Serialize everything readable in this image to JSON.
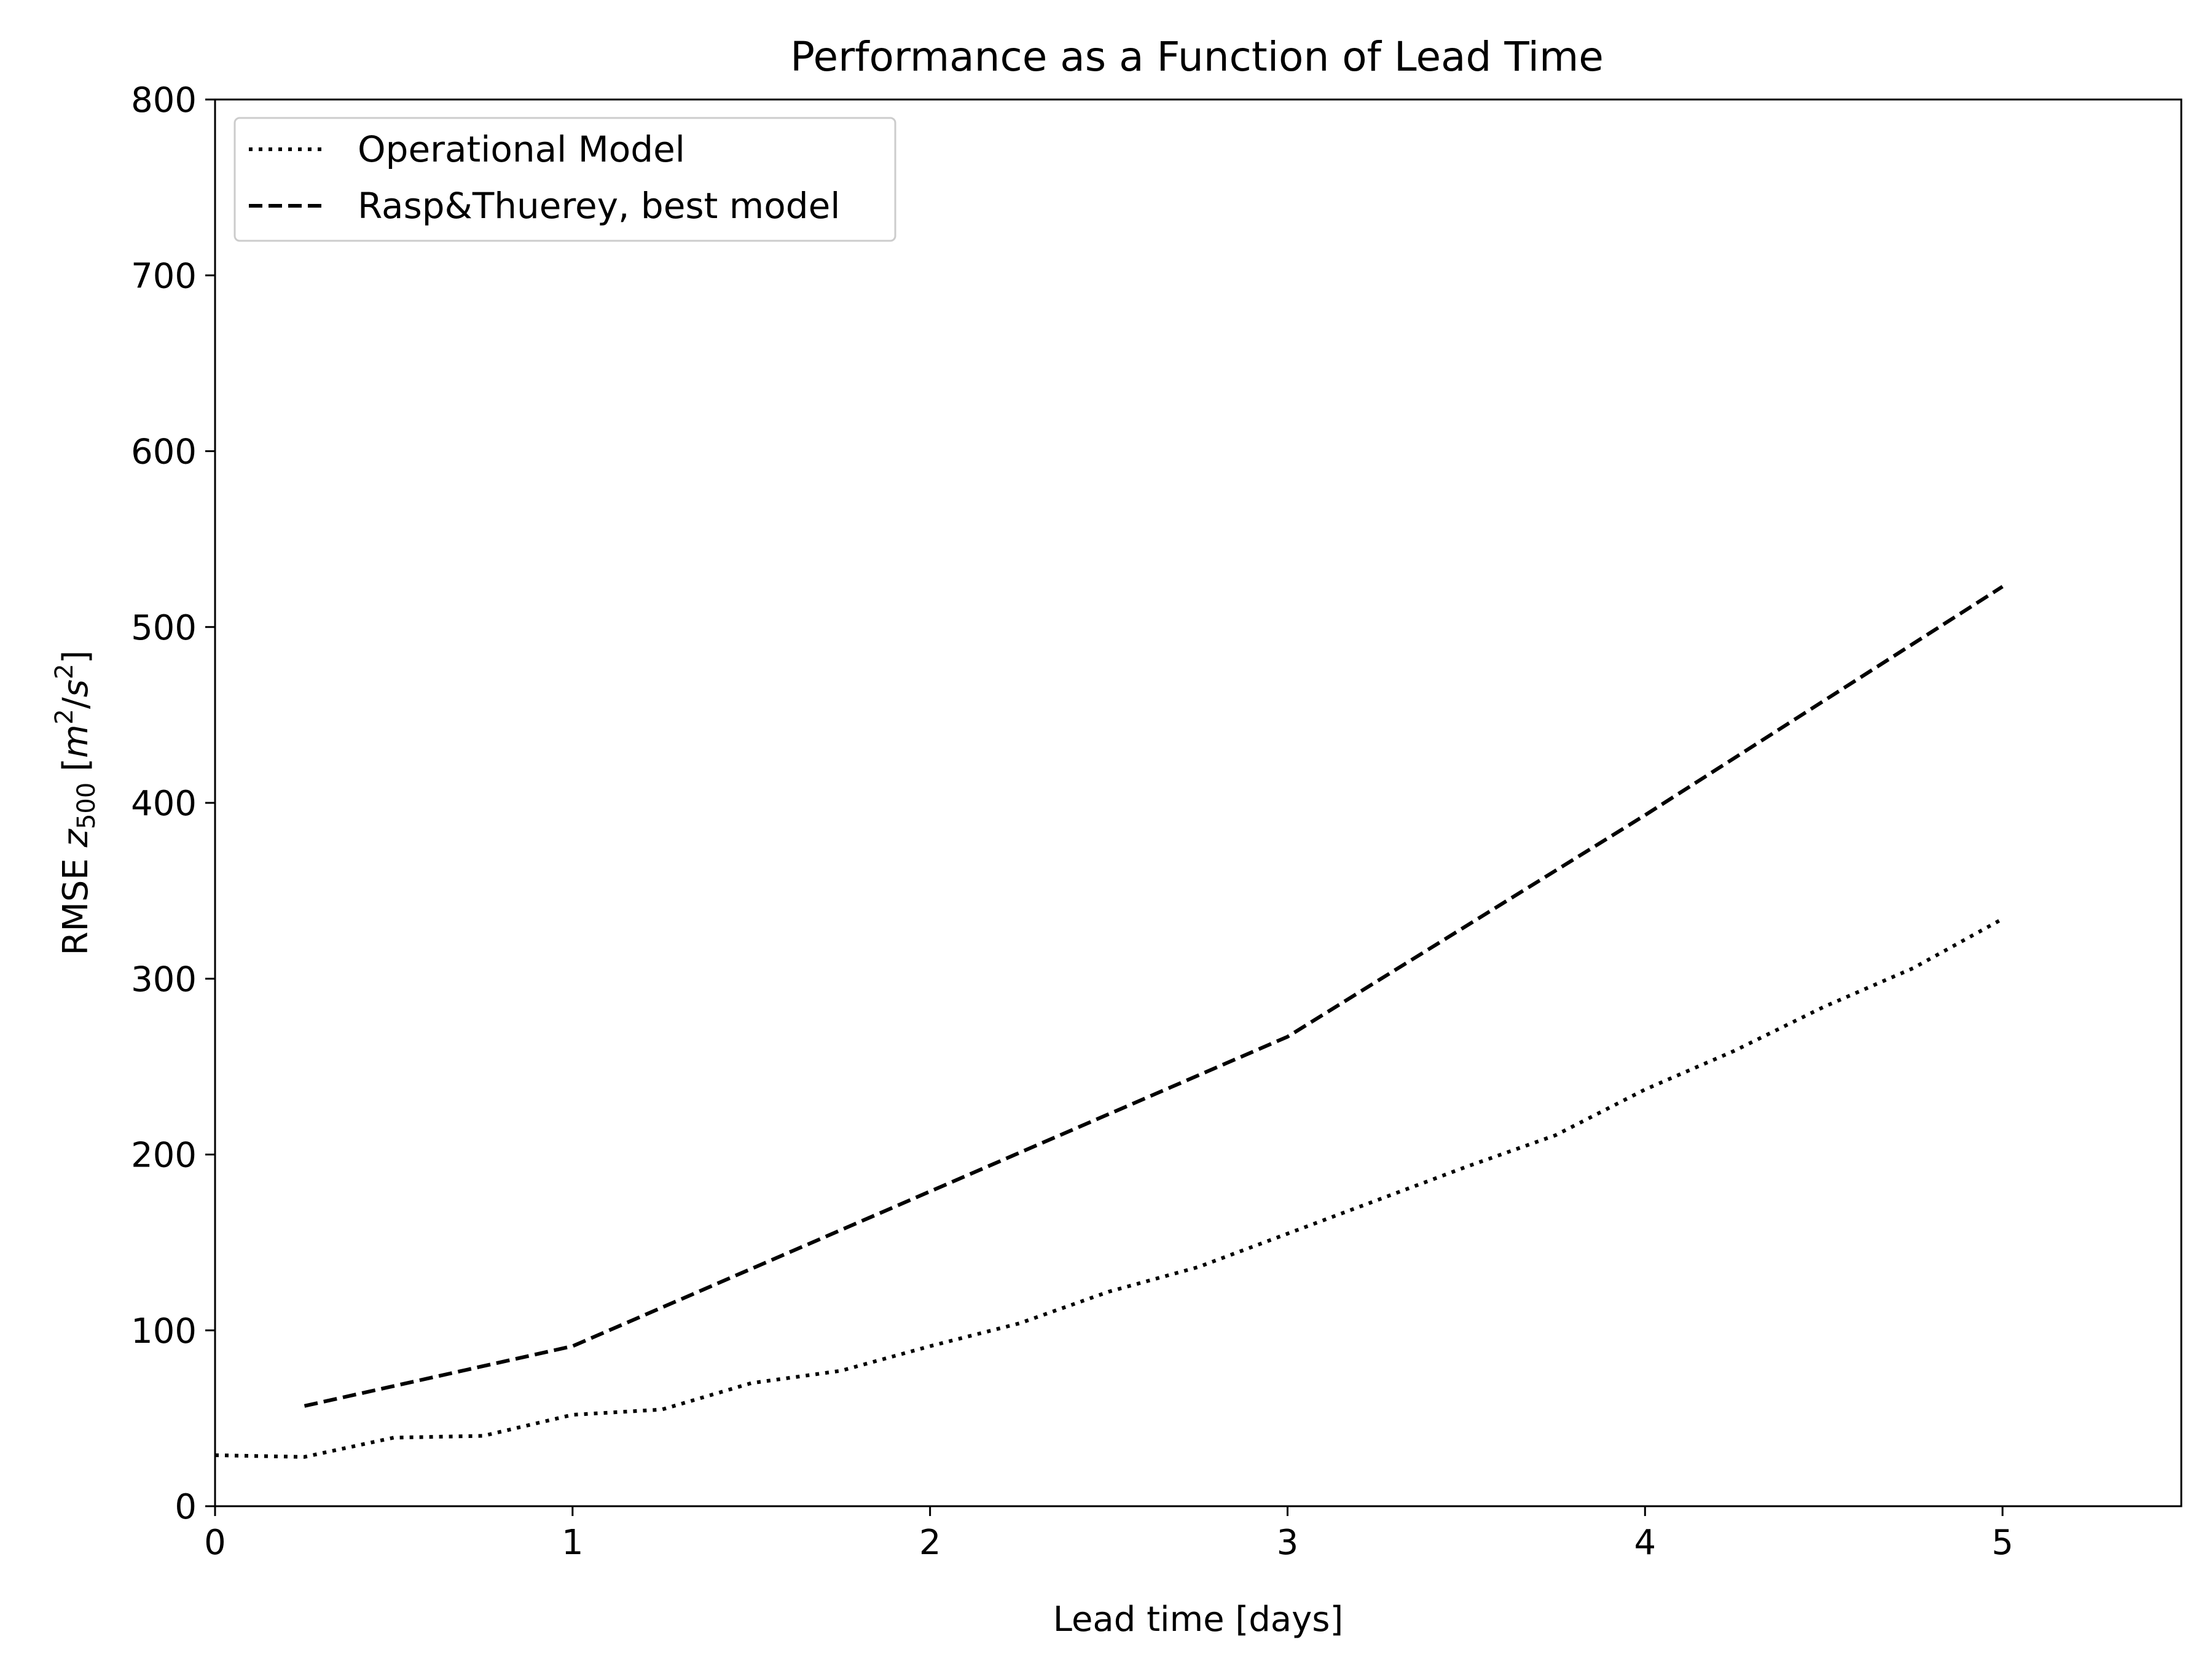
{
  "chart_data": {
    "type": "line",
    "title": "Performance as a Function of Lead Time",
    "xlabel": "Lead time [days]",
    "ylabel": {
      "prefix": "RMSE ",
      "var": "z",
      "var_sub": "500",
      "unit_open": " [",
      "unit_m": "m",
      "unit_m_exp": "2",
      "unit_slash": "/",
      "unit_s": "s",
      "unit_s_exp": "2",
      "unit_close": "]"
    },
    "xlim": [
      0,
      5.5
    ],
    "ylim": [
      0,
      800
    ],
    "xticks": [
      0,
      1,
      2,
      3,
      4,
      5
    ],
    "yticks": [
      0,
      100,
      200,
      300,
      400,
      500,
      600,
      700,
      800
    ],
    "grid": false,
    "legend_position": "top-left",
    "series": [
      {
        "name": "Operational Model",
        "style": "dotted",
        "color": "#000000",
        "x": [
          0,
          0.25,
          0.5,
          0.75,
          1.0,
          1.25,
          1.5,
          1.75,
          2.0,
          2.25,
          2.5,
          2.75,
          3.0,
          3.25,
          3.5,
          3.75,
          4.0,
          4.25,
          4.5,
          4.75,
          5.0
        ],
        "y": [
          29,
          28,
          39,
          40,
          52,
          55,
          70,
          77,
          91,
          104,
          122,
          136,
          155,
          174,
          193,
          211,
          237,
          259,
          284,
          306,
          334
        ]
      },
      {
        "name": "Rasp&Thuerey, best model",
        "style": "dashed",
        "color": "#000000",
        "x": [
          0.25,
          1.0,
          2.0,
          3.0,
          4.0,
          5.0
        ],
        "y": [
          57,
          91,
          179,
          267,
          393,
          523
        ]
      }
    ]
  }
}
